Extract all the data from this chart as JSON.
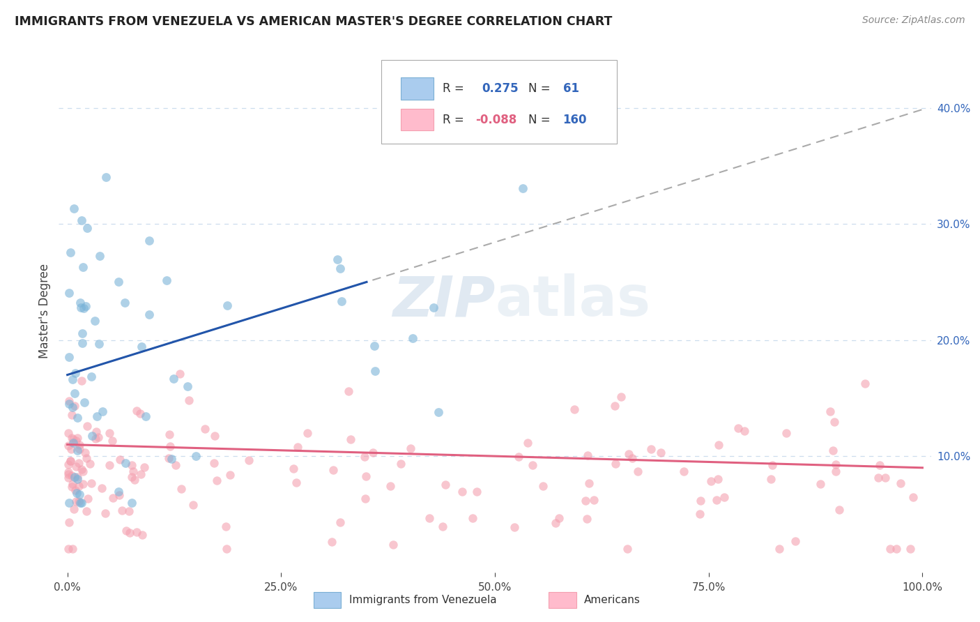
{
  "title": "IMMIGRANTS FROM VENEZUELA VS AMERICAN MASTER'S DEGREE CORRELATION CHART",
  "source": "Source: ZipAtlas.com",
  "ylabel": "Master's Degree",
  "right_yticklabels": [
    "10.0%",
    "20.0%",
    "30.0%",
    "40.0%"
  ],
  "right_ytick_vals": [
    10,
    20,
    30,
    40
  ],
  "blue_R": 0.275,
  "blue_N": 61,
  "pink_R": -0.088,
  "pink_N": 160,
  "ymax": 45,
  "xmax": 100,
  "blue_color": "#7AB3D8",
  "pink_color": "#F4A0B0",
  "blue_line_color": "#2255AA",
  "pink_line_color": "#E06080",
  "dash_color": "#AAAAAA",
  "grid_color": "#CCDDEE",
  "watermark": "ZIPatlas",
  "legend_text_color": "#3366BB",
  "legend_label_color": "#333333"
}
